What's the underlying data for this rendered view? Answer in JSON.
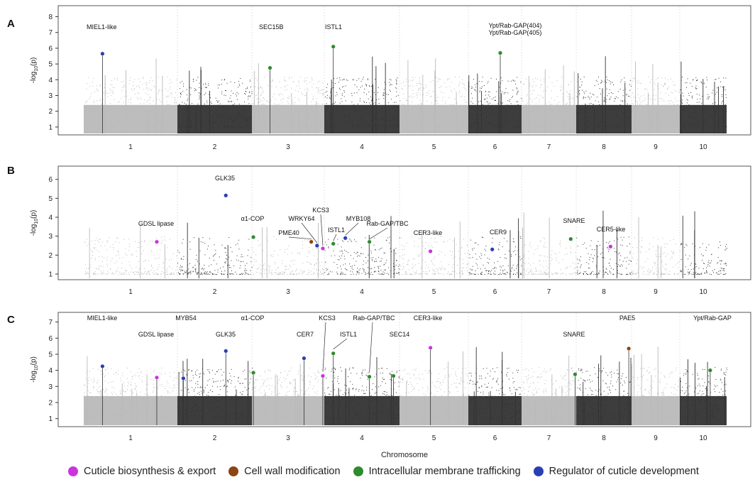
{
  "colors": {
    "light": "#b9b9b9",
    "dark": "#333333",
    "cuticle": "#cc33dd",
    "cellwall": "#8b4513",
    "membrane": "#2e8b2e",
    "regulator": "#2a3fb5"
  },
  "xlabel": "Chromosome",
  "legend": [
    {
      "label": "Cuticle biosynthesis & export",
      "color": "#cc33dd"
    },
    {
      "label": "Cell wall modification",
      "color": "#8b4513"
    },
    {
      "label": "Intracellular membrane trafficking",
      "color": "#2e8b2e"
    },
    {
      "label": "Regulator of cuticle development",
      "color": "#2a3fb5"
    }
  ],
  "chart_data": [
    {
      "type": "scatter",
      "panel": "A",
      "ylabel": "-log10(p)",
      "ylim": [
        0.5,
        8.7
      ],
      "yticks": [
        "1",
        "2",
        "3",
        "4",
        "5",
        "6",
        "7",
        "8"
      ],
      "chromosomes": [
        "1",
        "2",
        "3",
        "4",
        "5",
        "6",
        "7",
        "8",
        "9",
        "10"
      ],
      "points": [
        {
          "chr": 1,
          "pos": 0.2,
          "y": 5.65,
          "cat": "regulator",
          "label": "MIEL1-like",
          "align": "start"
        },
        {
          "chr": 3,
          "pos": 0.25,
          "y": 4.75,
          "cat": "membrane",
          "label": "SEC15B",
          "align": "start"
        },
        {
          "chr": 4,
          "pos": 0.12,
          "y": 6.1,
          "cat": "membrane",
          "label": "ISTL1",
          "align": "start"
        },
        {
          "chr": 6,
          "pos": 0.6,
          "y": 5.7,
          "cat": "membrane",
          "label": "Ypt/Rab-GAP(404)\nYpt/Rab-GAP(405)",
          "align": "middle"
        }
      ]
    },
    {
      "type": "scatter",
      "panel": "B",
      "ylabel": "-log10(p)",
      "ylim": [
        0.7,
        6.7
      ],
      "yticks": [
        "1",
        "2",
        "3",
        "4",
        "5",
        "6"
      ],
      "chromosomes": [
        "1",
        "2",
        "3",
        "4",
        "5",
        "6",
        "7",
        "8",
        "9",
        "10"
      ],
      "points": [
        {
          "chr": 1,
          "pos": 0.78,
          "y": 2.7,
          "cat": "cuticle",
          "label": "GDSL lipase"
        },
        {
          "chr": 2,
          "pos": 0.65,
          "y": 5.15,
          "cat": "regulator",
          "label": "GLK35"
        },
        {
          "chr": 3,
          "pos": 0.02,
          "y": 2.95,
          "cat": "membrane",
          "label": "α1-COP"
        },
        {
          "chr": 3,
          "pos": 0.82,
          "y": 2.7,
          "cat": "cellwall",
          "label": "PME40"
        },
        {
          "chr": 3,
          "pos": 0.9,
          "y": 2.5,
          "cat": "regulator",
          "label": "WRKY64"
        },
        {
          "chr": 3,
          "pos": 0.98,
          "y": 2.35,
          "cat": "cuticle",
          "label": "KCS3"
        },
        {
          "chr": 4,
          "pos": 0.12,
          "y": 2.6,
          "cat": "membrane",
          "label": "ISTL1"
        },
        {
          "chr": 4,
          "pos": 0.28,
          "y": 2.9,
          "cat": "regulator",
          "label": "MYB108"
        },
        {
          "chr": 4,
          "pos": 0.6,
          "y": 2.7,
          "cat": "membrane",
          "label": "Rab-GAP/TBC"
        },
        {
          "chr": 5,
          "pos": 0.45,
          "y": 2.2,
          "cat": "cuticle",
          "label": "CER3-like"
        },
        {
          "chr": 6,
          "pos": 0.45,
          "y": 2.3,
          "cat": "regulator",
          "label": "CER9"
        },
        {
          "chr": 7,
          "pos": 0.9,
          "y": 2.85,
          "cat": "membrane",
          "label": "SNARE"
        },
        {
          "chr": 8,
          "pos": 0.62,
          "y": 2.45,
          "cat": "cuticle",
          "label": "CER5-like"
        }
      ]
    },
    {
      "type": "scatter",
      "panel": "C",
      "ylabel": "-log10(p)",
      "ylim": [
        0.5,
        7.6
      ],
      "yticks": [
        "1",
        "2",
        "3",
        "4",
        "5",
        "6",
        "7"
      ],
      "chromosomes": [
        "1",
        "2",
        "3",
        "4",
        "5",
        "6",
        "7",
        "8",
        "9",
        "10"
      ],
      "points": [
        {
          "chr": 1,
          "pos": 0.2,
          "y": 4.25,
          "cat": "regulator",
          "label": "MIEL1-like"
        },
        {
          "chr": 1,
          "pos": 0.78,
          "y": 3.55,
          "cat": "cuticle",
          "label": "GDSL lipase"
        },
        {
          "chr": 2,
          "pos": 0.08,
          "y": 3.5,
          "cat": "regulator",
          "label": "MYB54"
        },
        {
          "chr": 2,
          "pos": 0.65,
          "y": 5.2,
          "cat": "regulator",
          "label": "GLK35"
        },
        {
          "chr": 3,
          "pos": 0.02,
          "y": 3.85,
          "cat": "membrane",
          "label": "α1-COP"
        },
        {
          "chr": 3,
          "pos": 0.72,
          "y": 4.75,
          "cat": "regulator",
          "label": "CER7"
        },
        {
          "chr": 3,
          "pos": 0.98,
          "y": 3.65,
          "cat": "cuticle",
          "label": "KCS3"
        },
        {
          "chr": 4,
          "pos": 0.12,
          "y": 5.05,
          "cat": "membrane",
          "label": "ISTL1"
        },
        {
          "chr": 4,
          "pos": 0.6,
          "y": 3.6,
          "cat": "membrane",
          "label": "Rab-GAP/TBC"
        },
        {
          "chr": 4,
          "pos": 0.92,
          "y": 3.65,
          "cat": "membrane",
          "label": "SEC14"
        },
        {
          "chr": 5,
          "pos": 0.45,
          "y": 5.4,
          "cat": "cuticle",
          "label": "CER3-like"
        },
        {
          "chr": 7,
          "pos": 0.98,
          "y": 3.75,
          "cat": "membrane",
          "label": "SNARE"
        },
        {
          "chr": 8,
          "pos": 0.95,
          "y": 5.35,
          "cat": "cellwall",
          "label": "PAE5"
        },
        {
          "chr": 10,
          "pos": 0.65,
          "y": 4.0,
          "cat": "membrane",
          "label": "Ypt/Rab-GAP"
        }
      ]
    }
  ]
}
